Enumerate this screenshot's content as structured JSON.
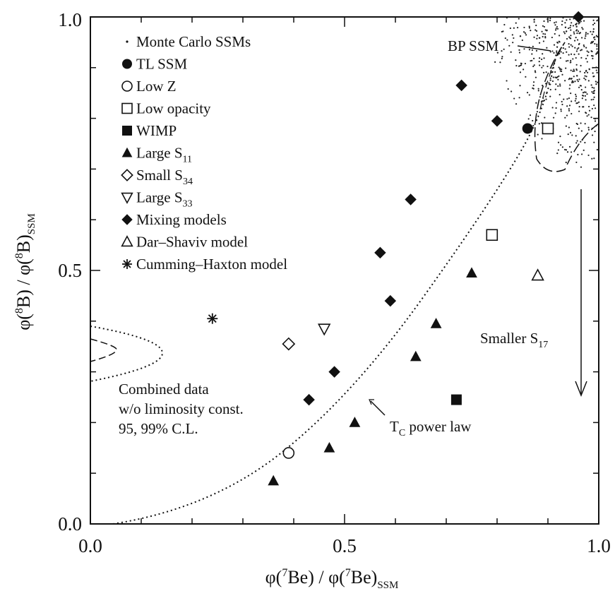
{
  "chart_data": {
    "type": "scatter",
    "title": "",
    "xlabel": {
      "base": "φ(",
      "sup1": "7",
      "mid": "Be) / φ(",
      "sup2": "7",
      "end": "Be)",
      "sub": "SSM"
    },
    "ylabel": {
      "base": "φ(",
      "sup1": "8",
      "mid": "B) / φ(",
      "sup2": "8",
      "end": "B)",
      "sub": "SSM"
    },
    "xlim": [
      0.0,
      1.0
    ],
    "ylim": [
      0.0,
      1.0
    ],
    "xticks": [
      "0.0",
      "0.5",
      "1.0"
    ],
    "yticks": [
      "0.0",
      "0.5",
      "1.0"
    ],
    "grid": false,
    "legend_position": "top-left",
    "series": [
      {
        "name": "Monte Carlo SSMs",
        "marker": "dot",
        "points": []
      },
      {
        "name": "TL SSM",
        "marker": "filled-circle",
        "points": [
          [
            0.86,
            0.78
          ]
        ]
      },
      {
        "name": "Low Z",
        "marker": "open-circle",
        "points": [
          [
            0.39,
            0.14
          ]
        ]
      },
      {
        "name": "Low opacity",
        "marker": "open-square",
        "points": [
          [
            0.79,
            0.57
          ],
          [
            0.9,
            0.78
          ]
        ]
      },
      {
        "name": "WIMP",
        "marker": "filled-square",
        "points": [
          [
            0.72,
            0.245
          ]
        ]
      },
      {
        "name": "Large S",
        "name_sub": "11",
        "marker": "filled-triangle-up",
        "points": [
          [
            0.36,
            0.085
          ],
          [
            0.47,
            0.15
          ],
          [
            0.52,
            0.2
          ],
          [
            0.64,
            0.33
          ],
          [
            0.68,
            0.395
          ],
          [
            0.75,
            0.495
          ]
        ]
      },
      {
        "name": "Small S",
        "name_sub": "34",
        "marker": "open-diamond",
        "points": [
          [
            0.39,
            0.355
          ]
        ]
      },
      {
        "name": "Large S",
        "name_sub": "33",
        "marker": "open-triangle-down",
        "points": [
          [
            0.46,
            0.385
          ]
        ]
      },
      {
        "name": "Mixing models",
        "marker": "filled-diamond",
        "points": [
          [
            0.43,
            0.245
          ],
          [
            0.48,
            0.3
          ],
          [
            0.59,
            0.44
          ],
          [
            0.57,
            0.535
          ],
          [
            0.63,
            0.64
          ],
          [
            0.73,
            0.865
          ],
          [
            0.8,
            0.795
          ],
          [
            0.96,
            1.0
          ]
        ]
      },
      {
        "name": "Dar–Shaviv model",
        "marker": "open-triangle-up",
        "points": [
          [
            0.88,
            0.49
          ]
        ]
      },
      {
        "name": "Cumming–Haxton model",
        "marker": "asterisk",
        "points": [
          [
            0.24,
            0.405
          ]
        ]
      }
    ],
    "annotations": {
      "bp_ssm": "BP SSM",
      "smaller_s17": {
        "text": "Smaller S",
        "sub": "17"
      },
      "tc_power_law": {
        "text": "T",
        "sub": "C",
        "rest": " power law"
      },
      "combined_data": [
        "Combined data",
        "w/o liminosity const.",
        "95, 99% C.L."
      ]
    }
  }
}
